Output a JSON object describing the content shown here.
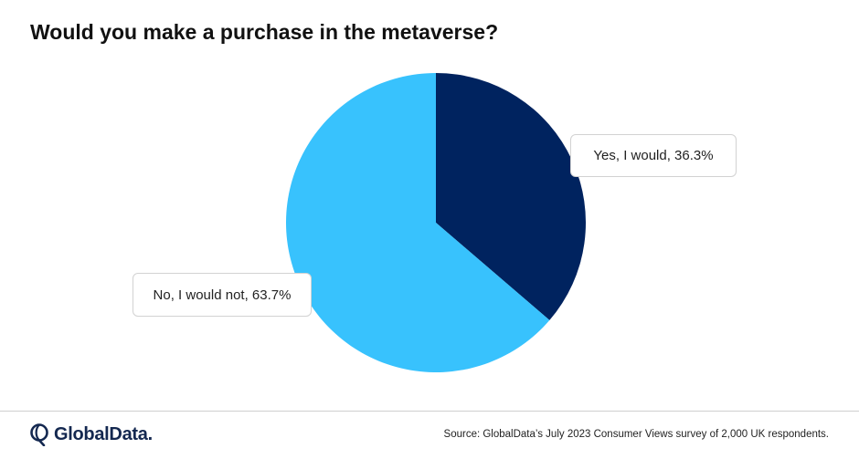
{
  "title": "Would you make a purchase in the metaverse?",
  "chart_data": {
    "type": "pie",
    "title": "Would you make a purchase in the metaverse?",
    "slices": [
      {
        "label": "Yes, I would",
        "value": 36.3,
        "display": "Yes, I would, 36.3%",
        "color": "#00235f"
      },
      {
        "label": "No, I would not",
        "value": 63.7,
        "display": "No, I would not, 63.7%",
        "color": "#38c2fd"
      }
    ],
    "start_angle": "12 o'clock",
    "direction": "clockwise",
    "legend": "none"
  },
  "footer": {
    "logo_text": "GlobalData.",
    "source": "Source: GlobalData’s July 2023 Consumer Views survey of 2,000 UK respondents."
  }
}
